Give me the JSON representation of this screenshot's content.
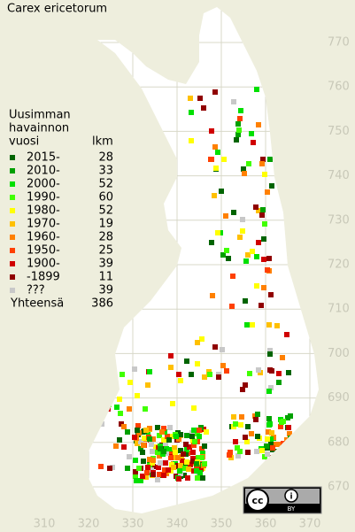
{
  "title": "Carex ericetorum",
  "legend": {
    "heading": [
      "Uusimman",
      "havainnon",
      "vuosi"
    ],
    "count_heading": "lkm",
    "entries": [
      {
        "label": "2015-",
        "count": 28,
        "color": "#006400"
      },
      {
        "label": "2010-",
        "count": 33,
        "color": "#00a000"
      },
      {
        "label": "2000-",
        "count": 52,
        "color": "#00e000"
      },
      {
        "label": "1990-",
        "count": 60,
        "color": "#40ff00"
      },
      {
        "label": "1980-",
        "count": 52,
        "color": "#ffff00"
      },
      {
        "label": "1970-",
        "count": 19,
        "color": "#ffc000"
      },
      {
        "label": "1960-",
        "count": 28,
        "color": "#ff8000"
      },
      {
        "label": "1950-",
        "count": 25,
        "color": "#ff4000"
      },
      {
        "label": "1900-",
        "count": 39,
        "color": "#d00000"
      },
      {
        "label": "-1899",
        "count": 11,
        "color": "#900000"
      },
      {
        "label": "???",
        "count": 39,
        "color": "#c8c8c8"
      }
    ],
    "total_label": "Yhteensä",
    "total": 386
  },
  "axes": {
    "y_labels": [
      770,
      760,
      750,
      740,
      730,
      720,
      710,
      700,
      690,
      680,
      670
    ],
    "x_labels": [
      310,
      320,
      330,
      340,
      350,
      360,
      370
    ]
  }
}
